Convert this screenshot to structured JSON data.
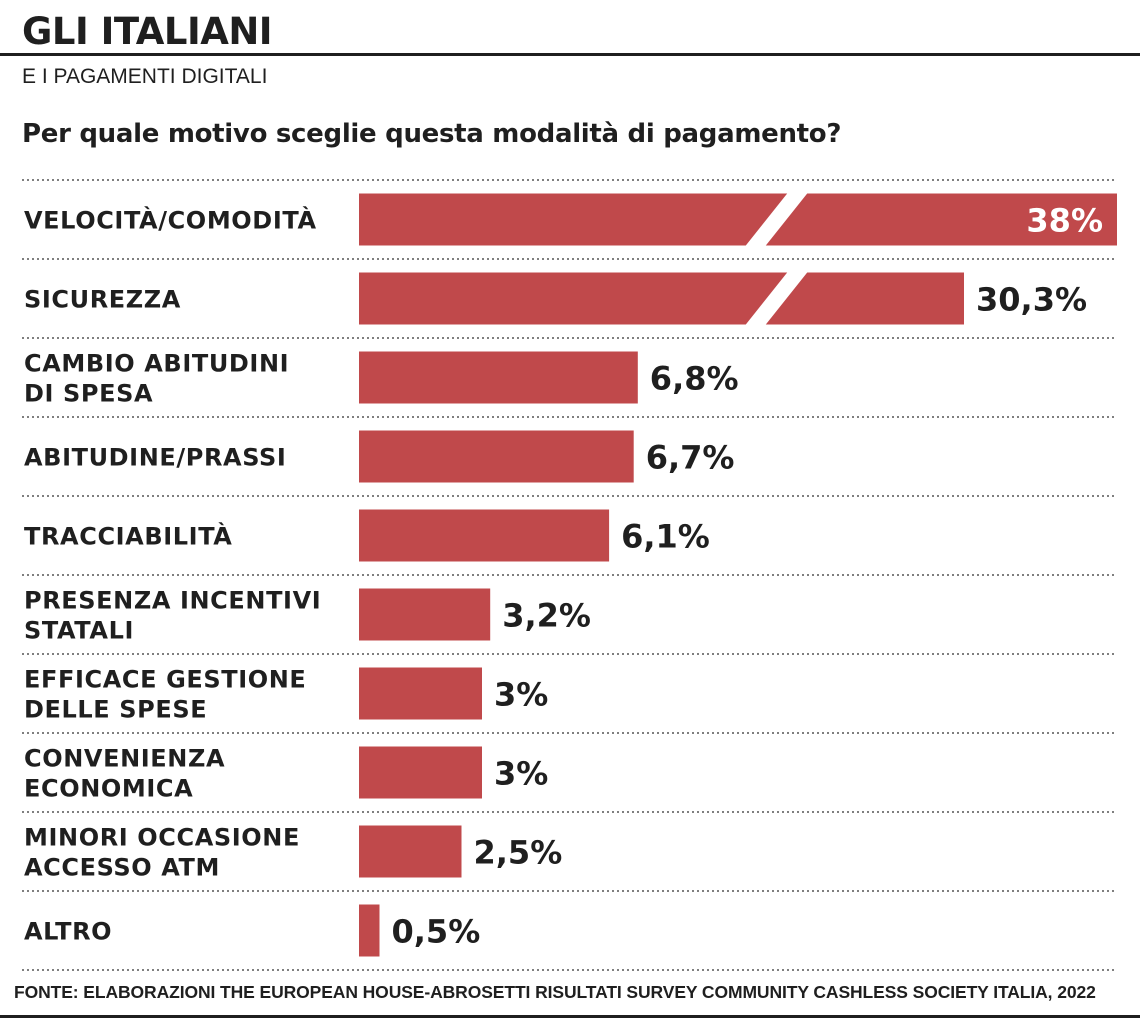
{
  "header": {
    "title": "GLI ITALIANI",
    "subtitle": "E I PAGAMENTI DIGITALI",
    "question": "Per quale motivo sceglie questa modalità di pagamento?"
  },
  "footer": {
    "source": "FONTE: ELABORAZIONI THE EUROPEAN HOUSE-ABROSETTI RISULTATI SURVEY COMMUNITY CASHLESS SOCIETY ITALIA, 2022"
  },
  "colors": {
    "bar": "#c0494b",
    "text": "#1f1f1f",
    "divider": "#555555"
  },
  "chart_data": {
    "type": "bar",
    "orientation": "horizontal",
    "title": "Per quale motivo sceglie questa modalità di pagamento?",
    "categories": [
      [
        "VELOCITÀ/COMODITÀ"
      ],
      [
        "SICUREZZA"
      ],
      [
        "CAMBIO ABITUDINI",
        "DI SPESA"
      ],
      [
        "ABITUDINE/PRASSI"
      ],
      [
        "TRACCIABILITÀ"
      ],
      [
        "PRESENZA INCENTIVI",
        "STATALI"
      ],
      [
        "EFFICACE GESTIONE",
        "DELLE SPESE"
      ],
      [
        "CONVENIENZA",
        "ECONOMICA"
      ],
      [
        "MINORI OCCASIONE",
        "ACCESSO ATM"
      ],
      [
        "ALTRO"
      ]
    ],
    "values": [
      38,
      30.3,
      6.8,
      6.7,
      6.1,
      3.2,
      3,
      3,
      2.5,
      0.5
    ],
    "value_labels": [
      "38%",
      "30,3%",
      "6,8%",
      "6,7%",
      "6,1%",
      "3,2%",
      "3%",
      "3%",
      "2,5%",
      "0,5%"
    ],
    "broken_bars": [
      0,
      1
    ],
    "unit": "%",
    "grid": false,
    "legend": "none"
  }
}
